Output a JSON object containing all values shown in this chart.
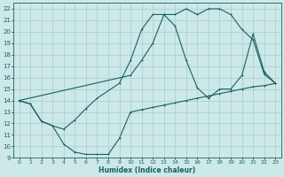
{
  "xlabel": "Humidex (Indice chaleur)",
  "xlim": [
    -0.5,
    23.5
  ],
  "ylim": [
    9,
    22.5
  ],
  "bg_color": "#cce8e8",
  "grid_color": "#a8cccc",
  "line_color": "#1a6060",
  "line1_x": [
    0,
    1,
    2,
    3,
    4,
    5,
    6,
    7,
    8,
    9,
    10,
    11,
    12,
    13,
    14,
    15,
    16,
    17,
    18,
    19,
    20,
    21,
    22,
    23
  ],
  "line1_y": [
    14,
    13.7,
    12.2,
    11.8,
    10.2,
    9.5,
    9.3,
    9.3,
    9.3,
    10.7,
    13.0,
    13.2,
    13.4,
    13.6,
    13.8,
    14.0,
    14.2,
    14.4,
    14.6,
    14.8,
    15.0,
    15.2,
    15.3,
    15.5
  ],
  "line2_x": [
    0,
    1,
    2,
    3,
    4,
    5,
    6,
    7,
    9,
    10,
    11,
    12,
    13,
    14,
    15,
    16,
    17,
    18,
    19,
    20,
    21,
    22,
    23
  ],
  "line2_y": [
    14,
    13.7,
    12.2,
    11.8,
    11.5,
    12.3,
    13.3,
    14.2,
    15.5,
    17.5,
    20.2,
    21.5,
    21.5,
    20.5,
    17.5,
    15.1,
    14.2,
    15.0,
    15.0,
    16.2,
    19.8,
    16.5,
    15.5
  ],
  "line3_x": [
    0,
    10,
    11,
    12,
    13,
    14,
    15,
    16,
    17,
    18,
    19,
    20,
    21,
    22,
    23
  ],
  "line3_y": [
    14,
    16.2,
    17.5,
    19.0,
    21.5,
    21.5,
    22.0,
    21.5,
    22.0,
    22.0,
    21.5,
    20.2,
    19.3,
    16.3,
    15.5
  ],
  "xticks": [
    0,
    1,
    2,
    3,
    4,
    5,
    6,
    7,
    8,
    9,
    10,
    11,
    12,
    13,
    14,
    15,
    16,
    17,
    18,
    19,
    20,
    21,
    22,
    23
  ],
  "yticks": [
    9,
    10,
    11,
    12,
    13,
    14,
    15,
    16,
    17,
    18,
    19,
    20,
    21,
    22
  ]
}
